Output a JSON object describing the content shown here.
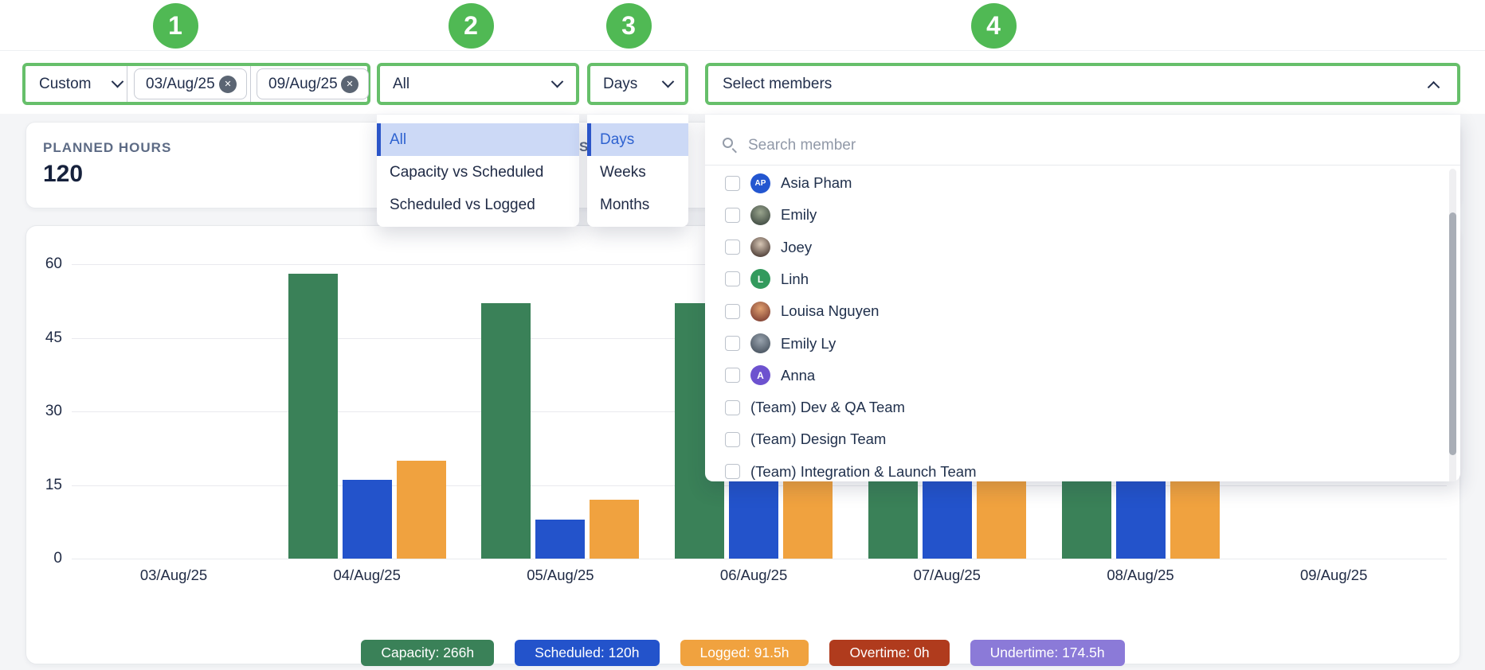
{
  "annotations": {
    "steps": [
      "1",
      "2",
      "3",
      "4"
    ]
  },
  "filters": {
    "period": "Custom",
    "date_from": "03/Aug/25",
    "date_to": "09/Aug/25",
    "metric_selected": "All",
    "interval_selected": "Days",
    "members_placeholder": "Select members"
  },
  "metric_menu": {
    "options": [
      "All",
      "Capacity vs Scheduled",
      "Scheduled vs Logged"
    ],
    "selected": "All"
  },
  "interval_menu": {
    "options": [
      "Days",
      "Weeks",
      "Months"
    ],
    "selected": "Days"
  },
  "members_panel": {
    "search_placeholder": "Search member",
    "members": [
      {
        "name": "Asia Pham",
        "avatar": "initials",
        "initials": "AP",
        "color": "#2356d0"
      },
      {
        "name": "Emily",
        "avatar": "photo",
        "colors": [
          "#9aa58e",
          "#49544a"
        ]
      },
      {
        "name": "Joey",
        "avatar": "photo",
        "colors": [
          "#d8c7b6",
          "#5a4a42"
        ]
      },
      {
        "name": "Linh",
        "avatar": "initials",
        "initials": "L",
        "color": "#339a5d"
      },
      {
        "name": "Louisa Nguyen",
        "avatar": "photo",
        "colors": [
          "#e0a070",
          "#8a4a3a"
        ]
      },
      {
        "name": "Emily Ly",
        "avatar": "photo",
        "colors": [
          "#99a3ae",
          "#515c68"
        ]
      },
      {
        "name": "Anna",
        "avatar": "initials",
        "initials": "A",
        "color": "#6d52cf"
      },
      {
        "name": "(Team) Dev & QA Team",
        "avatar": "none"
      },
      {
        "name": "(Team) Design Team",
        "avatar": "none"
      },
      {
        "name": "(Team) Integration & Launch Team",
        "avatar": "none"
      }
    ]
  },
  "stat_card": {
    "label": "PLANNED HOURS",
    "value": "120",
    "hidden_card_fragment": "S"
  },
  "chart_data": {
    "type": "bar",
    "title": "",
    "categories": [
      "03/Aug/25",
      "04/Aug/25",
      "05/Aug/25",
      "06/Aug/25",
      "07/Aug/25",
      "08/Aug/25",
      "09/Aug/25"
    ],
    "series": [
      {
        "name": "Capacity",
        "color": "#3a8158",
        "values": [
          0,
          58,
          52,
          52,
          52,
          52,
          0
        ]
      },
      {
        "name": "Scheduled",
        "color": "#2353cb",
        "values": [
          0,
          16,
          8,
          32,
          32,
          32,
          0
        ]
      },
      {
        "name": "Logged",
        "color": "#f0a23f",
        "values": [
          0,
          20,
          12,
          19.8,
          19.8,
          19.9,
          0
        ]
      }
    ],
    "ylim": [
      0,
      60
    ],
    "yticks": [
      0,
      15,
      30,
      45,
      60
    ],
    "grid": true,
    "legend_position": "bottom"
  },
  "legend": [
    {
      "label": "Capacity: 266h",
      "color": "#3a8158"
    },
    {
      "label": "Scheduled: 120h",
      "color": "#2353cb"
    },
    {
      "label": "Logged: 91.5h",
      "color": "#f0a23f"
    },
    {
      "label": "Overtime: 0h",
      "color": "#b03b1d"
    },
    {
      "label": "Undertime: 174.5h",
      "color": "#8b7ad8"
    }
  ],
  "colors": {
    "step_circle": "#50b954",
    "filter_outline": "#66bf6a",
    "menu_highlight_bg": "#ccd9f6",
    "menu_highlight_accent": "#2b55c8"
  }
}
